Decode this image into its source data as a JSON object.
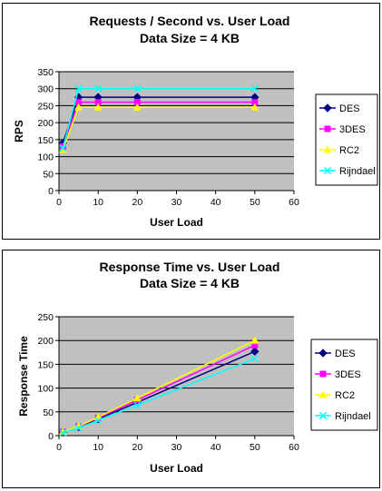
{
  "chart_data": [
    {
      "type": "line",
      "title": "Requests / Second  vs.  User Load",
      "subtitle": "Data Size = 4 KB",
      "xlabel": "User Load",
      "ylabel": "RPS",
      "xlim": [
        0,
        60
      ],
      "ylim": [
        0,
        350
      ],
      "xticks": [
        0,
        10,
        20,
        30,
        40,
        50,
        60
      ],
      "yticks": [
        0,
        50,
        100,
        150,
        200,
        250,
        300,
        350
      ],
      "grid": true,
      "legend": "right",
      "series": [
        {
          "name": "DES",
          "color": "#000080",
          "marker": "diamond",
          "x": [
            1,
            5,
            10,
            20,
            50
          ],
          "y": [
            140,
            275,
            275,
            275,
            275
          ]
        },
        {
          "name": "3DES",
          "color": "#ff00ff",
          "marker": "square",
          "x": [
            1,
            5,
            10,
            20,
            50
          ],
          "y": [
            130,
            260,
            260,
            260,
            260
          ]
        },
        {
          "name": "RC2",
          "color": "#ffff00",
          "marker": "triangle",
          "x": [
            1,
            5,
            10,
            20,
            50
          ],
          "y": [
            120,
            245,
            245,
            245,
            245
          ]
        },
        {
          "name": "Rijndael",
          "color": "#00ffff",
          "marker": "x",
          "x": [
            1,
            5,
            10,
            20,
            50
          ],
          "y": [
            125,
            300,
            300,
            300,
            300
          ]
        }
      ]
    },
    {
      "type": "line",
      "title": "Response Time  vs.  User Load",
      "subtitle": "Data Size = 4 KB",
      "xlabel": "User Load",
      "ylabel": "Response Time",
      "xlim": [
        0,
        60
      ],
      "ylim": [
        0,
        250
      ],
      "xticks": [
        0,
        10,
        20,
        30,
        40,
        50,
        60
      ],
      "yticks": [
        0,
        50,
        100,
        150,
        200,
        250
      ],
      "grid": true,
      "legend": "right",
      "series": [
        {
          "name": "DES",
          "color": "#000080",
          "marker": "diamond",
          "x": [
            1,
            5,
            10,
            20,
            50
          ],
          "y": [
            7,
            18,
            35,
            70,
            177
          ]
        },
        {
          "name": "3DES",
          "color": "#ff00ff",
          "marker": "square",
          "x": [
            1,
            5,
            10,
            20,
            50
          ],
          "y": [
            8,
            19,
            37,
            75,
            190
          ]
        },
        {
          "name": "RC2",
          "color": "#ffff00",
          "marker": "triangle",
          "x": [
            1,
            5,
            10,
            20,
            50
          ],
          "y": [
            8,
            20,
            39,
            79,
            200
          ]
        },
        {
          "name": "Rijndael",
          "color": "#00ffff",
          "marker": "x",
          "x": [
            1,
            5,
            10,
            20,
            50
          ],
          "y": [
            6,
            16,
            32,
            64,
            162
          ]
        }
      ]
    }
  ]
}
